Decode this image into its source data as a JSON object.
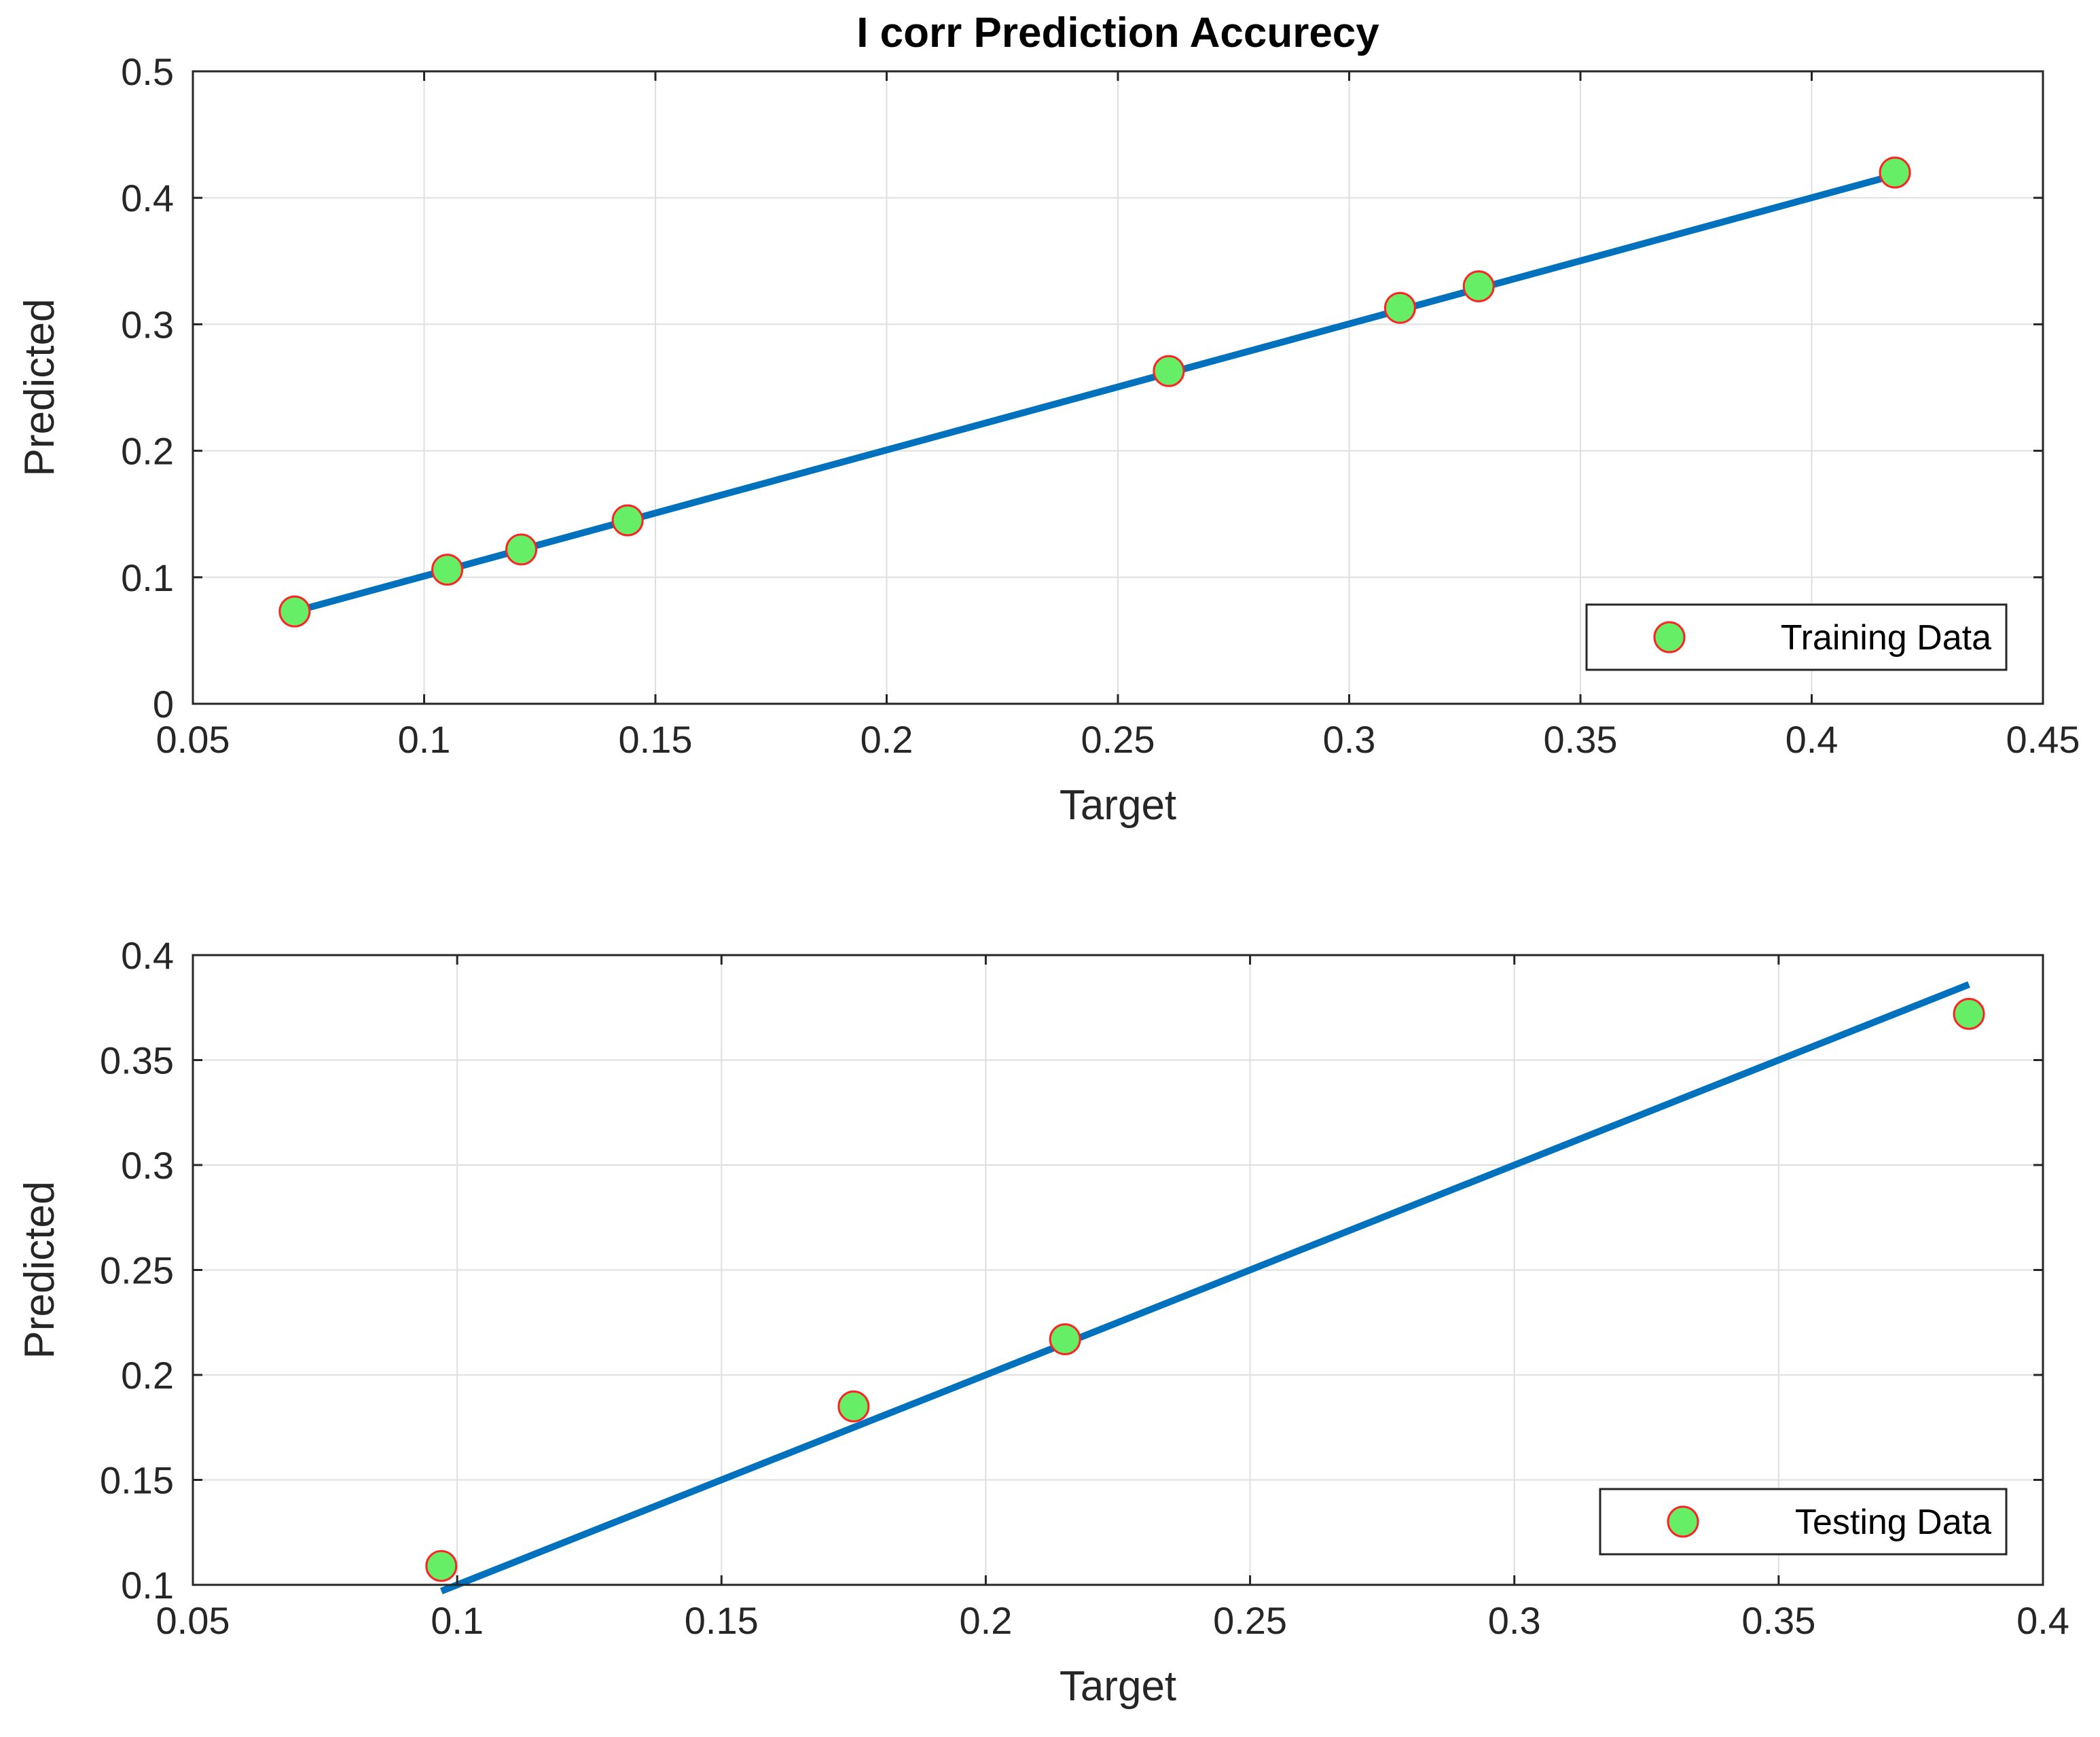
{
  "chart_data": [
    {
      "type": "scatter",
      "title": "I corr Prediction Accurecy",
      "xlabel": "Target",
      "ylabel": "Predicted",
      "xlim": [
        0.05,
        0.45
      ],
      "ylim": [
        0,
        0.5
      ],
      "xticks": [
        "0.05",
        "0.1",
        "0.15",
        "0.2",
        "0.25",
        "0.3",
        "0.35",
        "0.4",
        "0.45"
      ],
      "yticks": [
        "0",
        "0.1",
        "0.2",
        "0.3",
        "0.4",
        "0.5"
      ],
      "grid": true,
      "legend": "bottom-right",
      "series": [
        {
          "name": "Training Data",
          "x": [
            0.072,
            0.105,
            0.121,
            0.144,
            0.261,
            0.311,
            0.328,
            0.418
          ],
          "y": [
            0.073,
            0.106,
            0.122,
            0.145,
            0.263,
            0.313,
            0.33,
            0.42
          ],
          "marker_color": "#66ee66",
          "marker_edge": "#ff2222"
        }
      ],
      "fit_line": {
        "x": [
          0.072,
          0.418
        ],
        "y": [
          0.073,
          0.418
        ],
        "color": "#0072bd"
      }
    },
    {
      "type": "scatter",
      "title": "",
      "xlabel": "Target",
      "ylabel": "Predicted",
      "xlim": [
        0.05,
        0.4
      ],
      "ylim": [
        0.1,
        0.4
      ],
      "xticks": [
        "0.05",
        "0.1",
        "0.15",
        "0.2",
        "0.25",
        "0.3",
        "0.35",
        "0.4"
      ],
      "yticks": [
        "0.1",
        "0.15",
        "0.2",
        "0.25",
        "0.3",
        "0.35",
        "0.4"
      ],
      "grid": true,
      "legend": "bottom-right",
      "series": [
        {
          "name": "Testing Data",
          "x": [
            0.097,
            0.175,
            0.215,
            0.386
          ],
          "y": [
            0.109,
            0.185,
            0.217,
            0.372
          ],
          "marker_color": "#66ee66",
          "marker_edge": "#ff2222"
        }
      ],
      "fit_line": {
        "x": [
          0.097,
          0.386
        ],
        "y": [
          0.097,
          0.386
        ],
        "color": "#0072bd"
      }
    }
  ]
}
